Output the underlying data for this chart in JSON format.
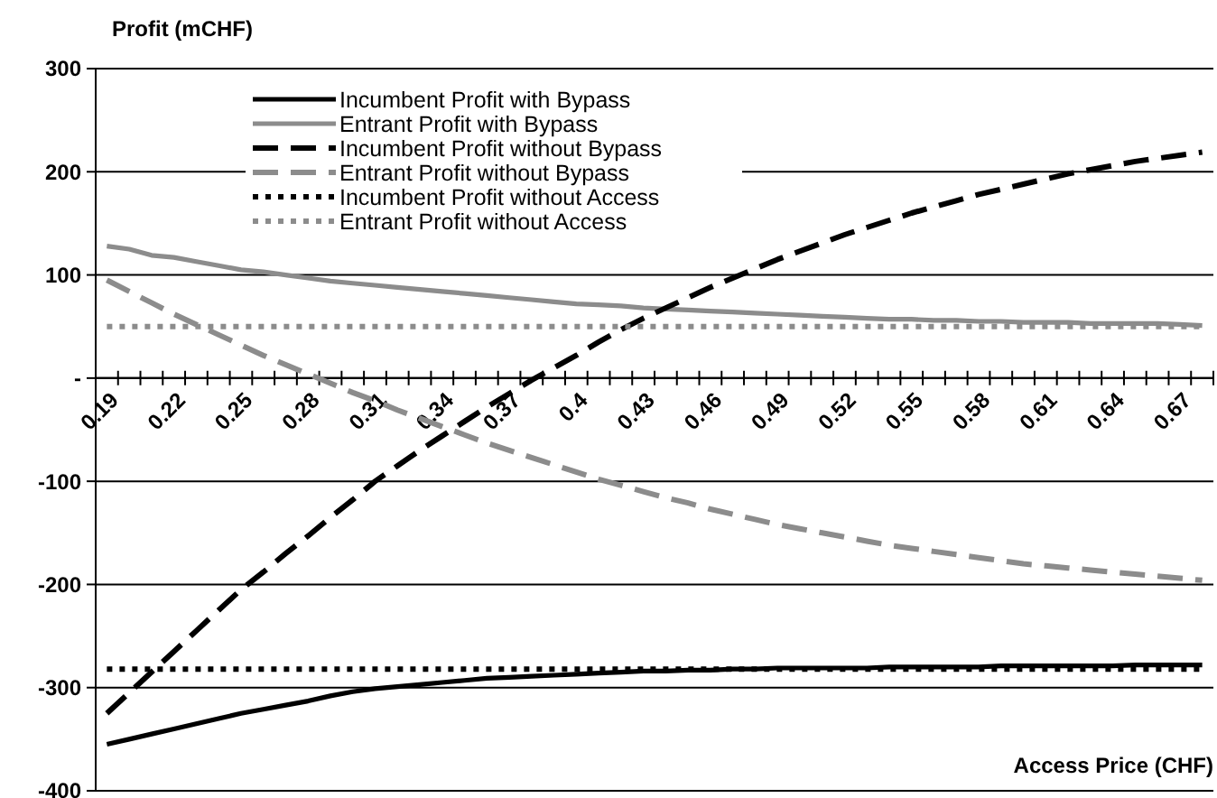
{
  "chart_data": {
    "type": "line",
    "ylabel": "Profit (mCHF)",
    "xlabel": "Access Price (CHF)",
    "categories": [
      "0.19",
      null,
      null,
      "0.22",
      null,
      null,
      "0.25",
      null,
      null,
      "0.28",
      null,
      null,
      "0.31",
      null,
      null,
      "0.34",
      null,
      null,
      "0.37",
      null,
      null,
      "0.4",
      null,
      null,
      "0.43",
      null,
      null,
      "0.46",
      null,
      null,
      "0.49",
      null,
      null,
      "0.52",
      null,
      null,
      "0.55",
      null,
      null,
      "0.58",
      null,
      null,
      "0.61",
      null,
      null,
      "0.64",
      null,
      null,
      "0.67",
      null
    ],
    "ylim": [
      -400,
      300
    ],
    "yticks": [
      300,
      200,
      100,
      {
        "value": 0,
        "label": "-"
      },
      -100,
      -200,
      -300,
      -400
    ],
    "grid": "y",
    "legend": "top left",
    "series": [
      {
        "name": "Incumbent Profit with Bypass",
        "color": "#000000",
        "line_style": "solid",
        "values": [
          -355,
          -350,
          -345,
          -340,
          -335,
          -330,
          -325,
          -321,
          -317,
          -313,
          -308,
          -304,
          -301,
          -299,
          -297,
          -295,
          -293,
          -291,
          -290,
          -289,
          -288,
          -287,
          -286,
          -285,
          -284,
          -284,
          -283,
          -283,
          -282,
          -282,
          -281,
          -281,
          -281,
          -281,
          -281,
          -280,
          -280,
          -280,
          -280,
          -280,
          -279,
          -279,
          -279,
          -279,
          -279,
          -279,
          -278,
          -278,
          -278,
          -278
        ]
      },
      {
        "name": "Entrant Profit with Bypass",
        "color": "#8c8c8c",
        "line_style": "solid",
        "values": [
          128,
          125,
          119,
          117,
          113,
          109,
          105,
          103,
          100,
          97,
          94,
          92,
          90,
          88,
          86,
          84,
          82,
          80,
          78,
          76,
          74,
          72,
          71,
          70,
          68,
          67,
          66,
          65,
          64,
          63,
          62,
          61,
          60,
          59,
          58,
          57,
          57,
          56,
          56,
          55,
          55,
          54,
          54,
          54,
          53,
          53,
          53,
          53,
          52,
          51
        ]
      },
      {
        "name": "Incumbent Profit without Bypass",
        "color": "#000000",
        "line_style": "dashed",
        "values": [
          -325,
          -305,
          -285,
          -265,
          -245,
          -225,
          -205,
          -188,
          -170,
          -153,
          -135,
          -118,
          -100,
          -85,
          -70,
          -56,
          -42,
          -28,
          -15,
          -2,
          10,
          22,
          35,
          47,
          58,
          68,
          78,
          88,
          97,
          106,
          115,
          123,
          131,
          139,
          146,
          153,
          160,
          166,
          172,
          178,
          183,
          188,
          193,
          198,
          202,
          206,
          210,
          213,
          216,
          219
        ]
      },
      {
        "name": "Entrant Profit without Bypass",
        "color": "#8c8c8c",
        "line_style": "dashed",
        "values": [
          95,
          84,
          73,
          62,
          52,
          42,
          32,
          22,
          13,
          4,
          -5,
          -14,
          -22,
          -31,
          -39,
          -47,
          -55,
          -63,
          -70,
          -77,
          -84,
          -91,
          -98,
          -104,
          -110,
          -116,
          -121,
          -127,
          -132,
          -137,
          -142,
          -146,
          -150,
          -154,
          -158,
          -162,
          -165,
          -168,
          -171,
          -174,
          -177,
          -180,
          -182,
          -184,
          -186,
          -188,
          -190,
          -192,
          -194,
          -196
        ]
      },
      {
        "name": "Incumbent Profit without Access",
        "color": "#000000",
        "line_style": "dotted",
        "values": [
          -282,
          -282,
          -282,
          -282,
          -282,
          -282,
          -282,
          -282,
          -282,
          -282,
          -282,
          -282,
          -282,
          -282,
          -282,
          -282,
          -282,
          -282,
          -282,
          -282,
          -282,
          -282,
          -282,
          -282,
          -282,
          -282,
          -282,
          -282,
          -282,
          -282,
          -282,
          -282,
          -282,
          -282,
          -282,
          -282,
          -282,
          -282,
          -282,
          -282,
          -282,
          -282,
          -282,
          -282,
          -282,
          -282,
          -282,
          -282,
          -282,
          -282
        ]
      },
      {
        "name": "Entrant Profit without Access",
        "color": "#8c8c8c",
        "line_style": "dotted",
        "values": [
          50,
          50,
          50,
          50,
          50,
          50,
          50,
          50,
          50,
          50,
          50,
          50,
          50,
          50,
          50,
          50,
          50,
          50,
          50,
          50,
          50,
          50,
          50,
          50,
          50,
          50,
          50,
          50,
          50,
          50,
          50,
          50,
          50,
          50,
          50,
          50,
          50,
          50,
          50,
          50,
          50,
          50,
          50,
          50,
          50,
          50,
          50,
          50,
          50,
          50
        ]
      }
    ]
  }
}
